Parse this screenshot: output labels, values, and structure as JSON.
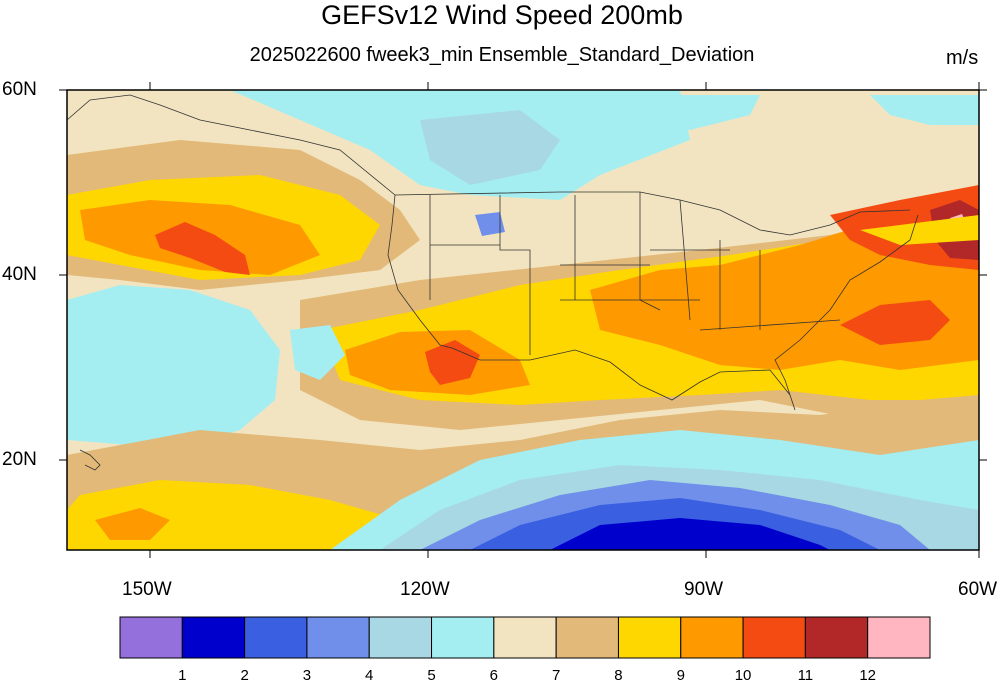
{
  "title": "GEFSv12 Wind Speed 200mb",
  "subtitle": "2025022600 fweek3_min Ensemble_Standard_Deviation",
  "units": "m/s",
  "lat_labels": [
    "60N",
    "40N",
    "20N"
  ],
  "lon_labels": [
    "150W",
    "120W",
    "90W",
    "60W"
  ],
  "colorbar": {
    "colors": [
      "#9370DB",
      "#0000CD",
      "#3A5FE0",
      "#6F8FEA",
      "#A8D8E3",
      "#A4EEF2",
      "#F2E4C0",
      "#E2B978",
      "#FFD700",
      "#FF9900",
      "#F44B12",
      "#B22828",
      "#FFB6C1"
    ],
    "labels": [
      "1",
      "2",
      "3",
      "4",
      "5",
      "6",
      "7",
      "8",
      "9",
      "10",
      "11",
      "12"
    ]
  }
}
